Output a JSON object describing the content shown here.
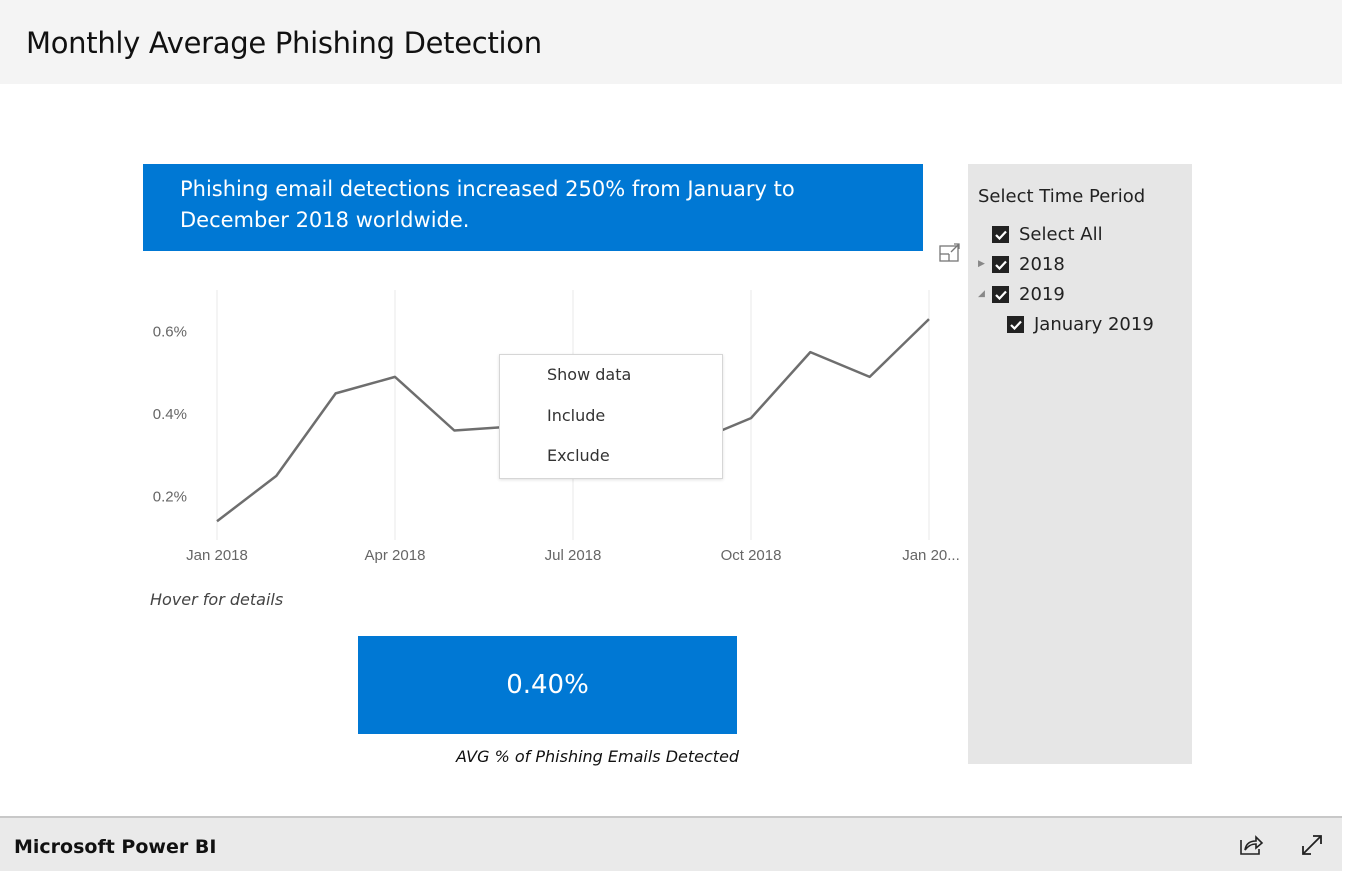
{
  "header": {
    "title": "Monthly Average Phishing Detection"
  },
  "banner": {
    "text": "Phishing email detections increased 250% from January to December 2018 worldwide."
  },
  "slicer": {
    "title": "Select Time Period",
    "items": [
      {
        "label": "Select All",
        "checked": true
      },
      {
        "label": "2018",
        "checked": true,
        "expanded": false
      },
      {
        "label": "2019",
        "checked": true,
        "expanded": true
      },
      {
        "label": "January 2019",
        "checked": true
      }
    ]
  },
  "context_menu": {
    "items": [
      "Show data",
      "Include",
      "Exclude"
    ]
  },
  "hover_hint": "Hover for details",
  "card": {
    "value": "0.40%",
    "label": "AVG % of Phishing Emails Detected"
  },
  "footer": {
    "brand": "Microsoft Power BI"
  },
  "colors": {
    "accent": "#0078d4",
    "line": "#6e6e6e",
    "slicer_bg": "#e6e6e6"
  },
  "chart_data": {
    "type": "line",
    "x": [
      "Jan 2018",
      "Feb 2018",
      "Mar 2018",
      "Apr 2018",
      "May 2018",
      "Jun 2018",
      "Jul 2018",
      "Aug 2018",
      "Sep 2018",
      "Oct 2018",
      "Nov 2018",
      "Dec 2018",
      "Jan 2019"
    ],
    "values": [
      0.14,
      0.25,
      0.45,
      0.49,
      0.36,
      0.37,
      0.37,
      0.35,
      0.33,
      0.39,
      0.55,
      0.49,
      0.63
    ],
    "x_tick_labels": [
      "Jan 2018",
      "Apr 2018",
      "Jul 2018",
      "Oct 2018",
      "Jan 20..."
    ],
    "x_tick_index": [
      0,
      3,
      6,
      9,
      12
    ],
    "y_tick_values": [
      0.2,
      0.4,
      0.6
    ],
    "y_tick_labels": [
      "0.2%",
      "0.4%",
      "0.6%"
    ],
    "ylim": [
      0,
      0.7
    ],
    "grid": "vertical",
    "xlabel": "",
    "ylabel": ""
  }
}
